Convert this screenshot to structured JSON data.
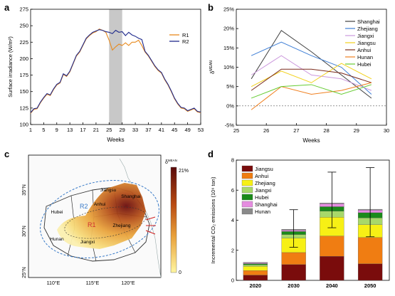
{
  "colors": {
    "r1": "#e8891c",
    "r2": "#1f2a8c",
    "grey": "#c8c8c8",
    "dashed": "#3a7bc8"
  },
  "panel_labels": [
    "a",
    "b",
    "c",
    "d"
  ],
  "chart_data": [
    {
      "type": "line",
      "title": "",
      "xlabel": "Weeks",
      "ylabel": "Surface irradiance (W/m²)",
      "xlim": [
        1,
        53
      ],
      "ylim": [
        100,
        275
      ],
      "xticks": [
        1,
        5,
        9,
        13,
        17,
        21,
        25,
        29,
        33,
        37,
        41,
        45,
        49,
        53
      ],
      "yticks": [
        100,
        125,
        150,
        175,
        200,
        225,
        250,
        275
      ],
      "shaded_range": [
        25,
        29
      ],
      "legend_position": "top-right",
      "series": [
        {
          "name": "R1",
          "color": "#e8891c",
          "x": [
            1,
            2,
            3,
            4,
            5,
            6,
            7,
            8,
            9,
            10,
            11,
            12,
            13,
            14,
            15,
            16,
            17,
            18,
            19,
            20,
            21,
            22,
            23,
            24,
            25,
            26,
            27,
            28,
            29,
            30,
            31,
            32,
            33,
            34,
            35,
            36,
            37,
            38,
            39,
            40,
            41,
            42,
            43,
            44,
            45,
            46,
            47,
            48,
            49,
            50,
            51,
            52,
            53
          ],
          "values": [
            117,
            123,
            124,
            133,
            140,
            146,
            144,
            153,
            160,
            163,
            176,
            173,
            180,
            192,
            204,
            210,
            220,
            230,
            235,
            239,
            241,
            245,
            243,
            240,
            228,
            213,
            218,
            222,
            220,
            224,
            220,
            225,
            225,
            228,
            220,
            210,
            204,
            196,
            188,
            182,
            178,
            168,
            160,
            150,
            139,
            131,
            125,
            124,
            120,
            122,
            124,
            119,
            118
          ]
        },
        {
          "name": "R2",
          "color": "#1f2a8c",
          "x": [
            1,
            2,
            3,
            4,
            5,
            6,
            7,
            8,
            9,
            10,
            11,
            12,
            13,
            14,
            15,
            16,
            17,
            18,
            19,
            20,
            21,
            22,
            23,
            24,
            25,
            26,
            27,
            28,
            29,
            30,
            31,
            32,
            33,
            34,
            35,
            36,
            37,
            38,
            39,
            40,
            41,
            42,
            43,
            44,
            45,
            46,
            47,
            48,
            49,
            50,
            51,
            52,
            53
          ],
          "values": [
            118,
            124,
            125,
            134,
            141,
            147,
            145,
            154,
            161,
            164,
            177,
            174,
            181,
            193,
            205,
            211,
            221,
            231,
            236,
            240,
            242,
            244,
            243,
            241,
            240,
            238,
            243,
            240,
            241,
            235,
            240,
            236,
            234,
            231,
            229,
            211,
            205,
            197,
            189,
            183,
            179,
            169,
            161,
            151,
            140,
            132,
            126,
            125,
            121,
            123,
            125,
            120,
            119
          ]
        }
      ]
    },
    {
      "type": "line",
      "title": "",
      "xlabel": "Weeks",
      "ylabel": "δMEAN",
      "xlim": [
        25,
        30
      ],
      "ylim": [
        -5,
        25
      ],
      "xticks": [
        25,
        26,
        27,
        28,
        29,
        30
      ],
      "yticks": [
        -5,
        0,
        5,
        10,
        15,
        20,
        25
      ],
      "ytick_labels": [
        "-5%",
        "0%",
        "5%",
        "10%",
        "15%",
        "20%",
        "25%"
      ],
      "zero_line": "dashed",
      "legend_position": "top-right",
      "x": [
        25.5,
        26.5,
        27.5,
        28.5,
        29.5
      ],
      "series": [
        {
          "name": "Shanghai",
          "color": "#404040",
          "values": [
            7,
            19.5,
            14,
            8,
            2
          ]
        },
        {
          "name": "Zhejiang",
          "color": "#3f7fd6",
          "values": [
            13,
            16.5,
            13,
            10,
            3
          ]
        },
        {
          "name": "Jiangxi",
          "color": "#cc99dd",
          "values": [
            8,
            13,
            8,
            7,
            4
          ]
        },
        {
          "name": "Jiangsu",
          "color": "#f2d11b",
          "values": [
            5,
            9,
            6,
            11,
            7
          ]
        },
        {
          "name": "Anhui",
          "color": "#7a2a1a",
          "values": [
            4,
            9.5,
            9.5,
            8.5,
            6
          ]
        },
        {
          "name": "Hunan",
          "color": "#f08020",
          "values": [
            -1,
            5,
            3,
            4,
            6
          ]
        },
        {
          "name": "Hubei",
          "color": "#66cc33",
          "values": [
            2,
            5,
            5.5,
            3,
            5.5
          ]
        }
      ]
    },
    {
      "type": "heatmap",
      "title": "",
      "xlabel": "",
      "ylabel": "",
      "xtick_labels": [
        "110°E",
        "115°E",
        "120°E"
      ],
      "ytick_labels": [
        "35°N",
        "30°N",
        "25°N"
      ],
      "colorbar_title": "δMEAN",
      "colorbar_top": "21%",
      "colorbar_bottom": "0",
      "region_labels": [
        "R1",
        "R2"
      ],
      "province_labels": [
        "Jiangsu",
        "Shanghai",
        "Anhui",
        "Hubei",
        "Zhejiang",
        "Hunan",
        "Jiangxi"
      ]
    },
    {
      "type": "bar",
      "stacked": true,
      "title": "",
      "xlabel": "",
      "ylabel": "Incremental CO₂ emissions (10⁶ ton)",
      "ylim": [
        0,
        8
      ],
      "yticks": [
        0,
        2,
        4,
        6,
        8
      ],
      "categories": [
        "2020",
        "2030",
        "2040",
        "2050"
      ],
      "legend_position": "top-left",
      "series": [
        {
          "name": "Jiangsu",
          "color": "#7a0c0c",
          "values": [
            0.35,
            1.05,
            1.6,
            1.1
          ]
        },
        {
          "name": "Anhui",
          "color": "#f07d12",
          "values": [
            0.3,
            0.8,
            1.35,
            1.75
          ]
        },
        {
          "name": "Zhejiang",
          "color": "#f7f015",
          "values": [
            0.28,
            0.95,
            1.25,
            0.85
          ]
        },
        {
          "name": "Jiangxi",
          "color": "#a8d86a",
          "values": [
            0.1,
            0.25,
            0.4,
            0.45
          ]
        },
        {
          "name": "Hubei",
          "color": "#1a8a1a",
          "values": [
            0.08,
            0.2,
            0.3,
            0.35
          ]
        },
        {
          "name": "Shanghai",
          "color": "#e58ce0",
          "values": [
            0.06,
            0.09,
            0.2,
            0.18
          ]
        },
        {
          "name": "Hunan",
          "color": "#8a8a8a",
          "values": [
            0.03,
            0.06,
            0.05,
            0.05
          ]
        }
      ],
      "error_bars": [
        null,
        {
          "low": 2.2,
          "high": 4.7
        },
        {
          "low": 3.5,
          "high": 7.2
        },
        {
          "low": 2.9,
          "high": 7.5
        }
      ]
    }
  ]
}
